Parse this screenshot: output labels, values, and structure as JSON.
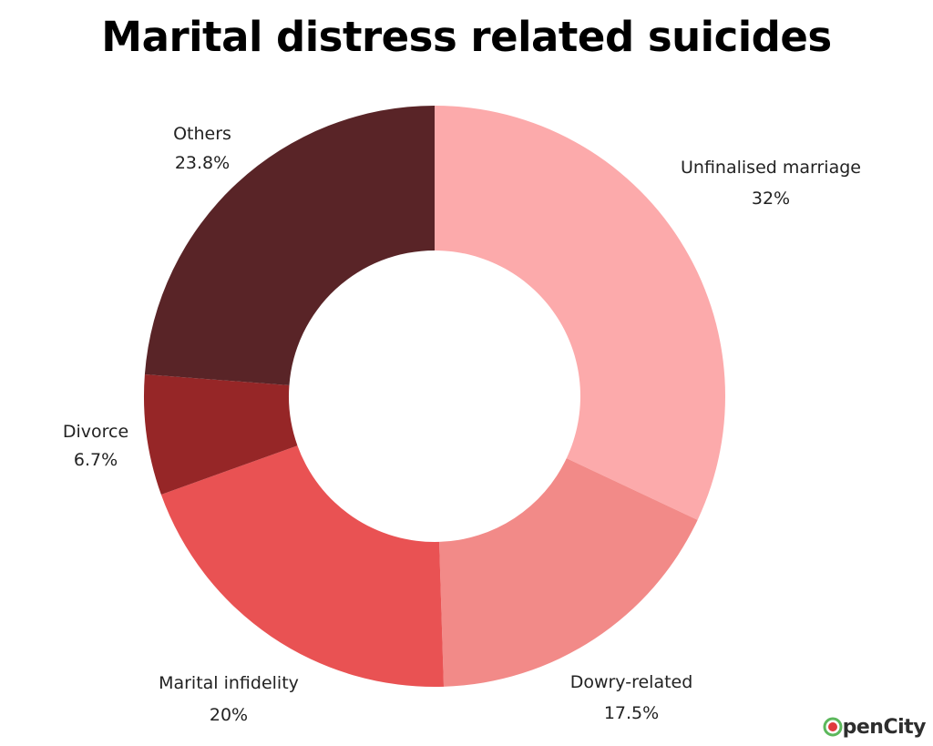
{
  "chart_data": {
    "type": "pie",
    "title": "Marital distress related suicides",
    "slices": [
      {
        "label": "Unfinalised marriage",
        "value_label": "32%",
        "value": 32,
        "color": "#fcaaab"
      },
      {
        "label": "Dowry-related",
        "value_label": "17.5%",
        "value": 17.5,
        "color": "#f28a88"
      },
      {
        "label": "Marital infidelity",
        "value_label": "20%",
        "value": 20,
        "color": "#e95253"
      },
      {
        "label": "Divorce",
        "value_label": "6.7%",
        "value": 6.7,
        "color": "#962627"
      },
      {
        "label": "Others",
        "value_label": "23.8%",
        "value": 23.8,
        "color": "#592427"
      }
    ]
  },
  "logo": {
    "text": "OpenCity"
  }
}
